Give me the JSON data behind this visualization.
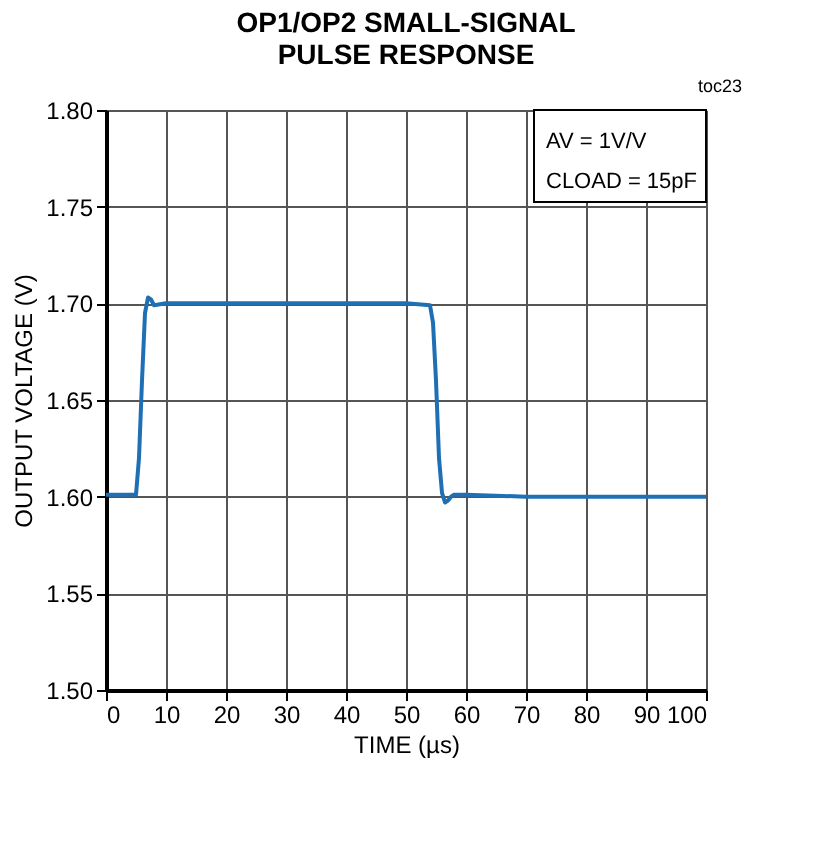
{
  "chart_data": {
    "type": "line",
    "title": [
      "OP1/OP2 SMALL-SIGNAL",
      "PULSE RESPONSE"
    ],
    "xlabel": "TIME (µs)",
    "ylabel": "OUTPUT VOLTAGE (V)",
    "series": [
      {
        "color": "#1f6fb5",
        "x": [
          0,
          5,
          5.5,
          6,
          6.5,
          7,
          7.5,
          8,
          10,
          20,
          30,
          40,
          50,
          54,
          54.5,
          55,
          55.5,
          56,
          56.5,
          57,
          57.5,
          58,
          60,
          70,
          80,
          90,
          100
        ],
        "values": [
          1.601,
          1.601,
          1.62,
          1.66,
          1.695,
          1.703,
          1.702,
          1.699,
          1.7,
          1.7,
          1.7,
          1.7,
          1.7,
          1.699,
          1.69,
          1.66,
          1.62,
          1.602,
          1.597,
          1.598,
          1.6,
          1.601,
          1.601,
          1.6,
          1.6,
          1.6,
          1.6
        ]
      }
    ],
    "xlim": [
      0,
      100
    ],
    "ylim": [
      1.5,
      1.8
    ],
    "xticks": [
      0,
      10,
      20,
      30,
      40,
      50,
      60,
      70,
      80,
      90,
      100
    ],
    "yticks": [
      {
        "value": 1.5,
        "label": "1.50"
      },
      1.55,
      {
        "value": 1.6,
        "label": "1.60"
      },
      1.65,
      {
        "value": 1.7,
        "label": "1.70"
      },
      1.75,
      {
        "value": 1.8,
        "label": "1.80"
      }
    ],
    "grid": true,
    "legend": false,
    "marker": "none",
    "line_style": "solid",
    "annotations": [
      "AV = 1V/V",
      "CLOAD = 15pF",
      "toc23"
    ]
  }
}
